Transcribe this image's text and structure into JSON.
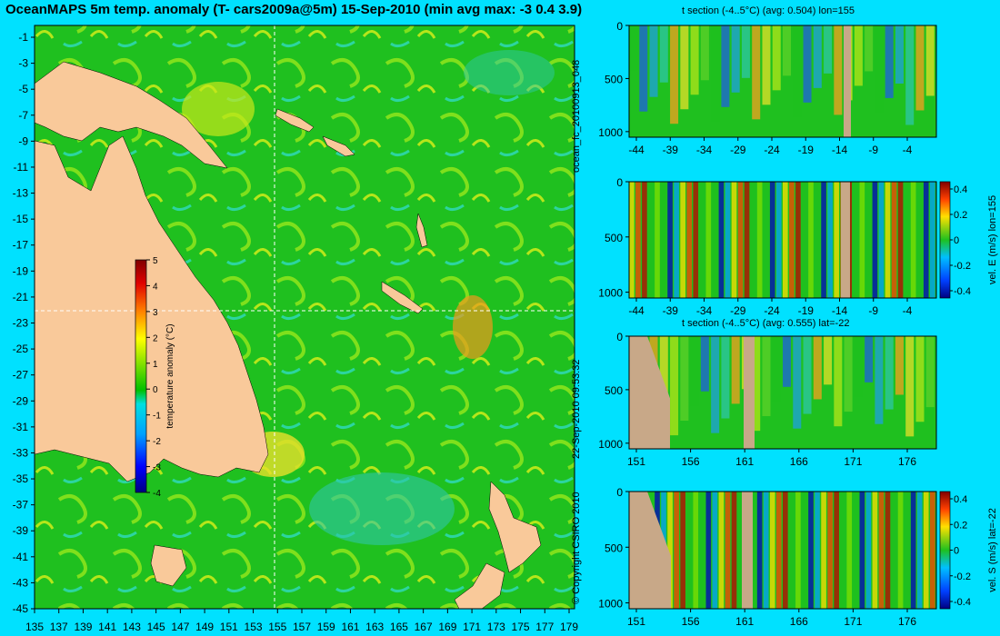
{
  "title": "OceanMAPS 5m temp. anomaly (T- cars2009a@5m) 15-Sep-2010 (min avg max: -3 0.4 3.9)",
  "map": {
    "lat_ticks": [
      "-1",
      "-3",
      "-5",
      "-7",
      "-9",
      "-11",
      "-13",
      "-15",
      "-17",
      "-19",
      "-21",
      "-23",
      "-25",
      "-27",
      "-29",
      "-31",
      "-33",
      "-35",
      "-37",
      "-39",
      "-41",
      "-43",
      "-45"
    ],
    "lon_ticks": [
      "135",
      "137",
      "139",
      "141",
      "143",
      "145",
      "147",
      "149",
      "151",
      "153",
      "155",
      "157",
      "159",
      "161",
      "163",
      "165",
      "167",
      "169",
      "171",
      "173",
      "175",
      "177",
      "179"
    ],
    "colorbar": {
      "label": "temperature anomaly (°C)",
      "ticks": [
        "5",
        "4",
        "3",
        "2",
        "1",
        "0",
        "-1",
        "-2",
        "-3",
        "-4"
      ]
    },
    "crosshair": {
      "lon": 155,
      "lat": -22
    }
  },
  "side_labels": {
    "run_id": "ocean_fc_20100913_048",
    "timestamp": "22-Sep-2010 09:53:32",
    "copyright": "© Copyright CSIRO 2010"
  },
  "sections": [
    {
      "title": "t section (-4..5°C) (avg: 0.504) lon=155",
      "y_ticks": [
        "0",
        "500",
        "1000"
      ],
      "x_ticks": [
        "-44",
        "-39",
        "-34",
        "-29",
        "-24",
        "-19",
        "-14",
        "-9",
        "-4"
      ],
      "colorbar": null
    },
    {
      "title": "",
      "y_ticks": [
        "0",
        "500",
        "1000"
      ],
      "x_ticks": [
        "-44",
        "-39",
        "-34",
        "-29",
        "-24",
        "-19",
        "-14",
        "-9",
        "-4"
      ],
      "colorbar": {
        "label": "vel. E (m/s) lon=155",
        "ticks": [
          "0.4",
          "0.2",
          "0",
          "-0.2",
          "-0.4"
        ]
      }
    },
    {
      "title": "t section (-4..5°C) (avg: 0.555) lat=-22",
      "y_ticks": [
        "0",
        "500",
        "1000"
      ],
      "x_ticks": [
        "151",
        "156",
        "161",
        "166",
        "171",
        "176"
      ],
      "colorbar": null
    },
    {
      "title": "",
      "y_ticks": [
        "0",
        "500",
        "1000"
      ],
      "x_ticks": [
        "151",
        "156",
        "161",
        "166",
        "171",
        "176"
      ],
      "colorbar": {
        "label": "vel. S (m/s) lat=-22",
        "ticks": [
          "0.4",
          "0.2",
          "0",
          "-0.2",
          "-0.4"
        ]
      }
    }
  ],
  "colors": {
    "background": "#00e1ff",
    "land": "#f9c99a",
    "section_land": "#c8a888",
    "ocean": "#1fc01f"
  }
}
